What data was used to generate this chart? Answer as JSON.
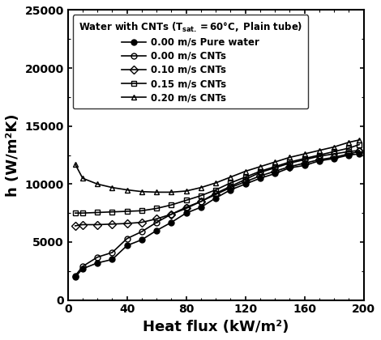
{
  "xlabel": "Heat flux (kW/m²)",
  "ylabel": "h (W/m²K)",
  "xlim": [
    0,
    200
  ],
  "ylim": [
    0,
    25000
  ],
  "xticks": [
    0,
    40,
    80,
    120,
    160,
    200
  ],
  "yticks": [
    0,
    5000,
    10000,
    15000,
    20000,
    25000
  ],
  "series": [
    {
      "label": "0.00 m/s Pure water",
      "marker": "o",
      "fillstyle": "full",
      "color": "black",
      "x": [
        5,
        10,
        20,
        30,
        40,
        50,
        60,
        70,
        80,
        90,
        100,
        110,
        120,
        130,
        140,
        150,
        160,
        170,
        180,
        190,
        197
      ],
      "y": [
        2000,
        2700,
        3200,
        3500,
        4700,
        5200,
        6000,
        6700,
        7500,
        8000,
        8800,
        9500,
        10000,
        10500,
        10900,
        11400,
        11600,
        12000,
        12200,
        12500,
        12600
      ]
    },
    {
      "label": "0.00 m/s CNTs",
      "marker": "o",
      "fillstyle": "none",
      "color": "black",
      "x": [
        5,
        10,
        20,
        30,
        40,
        50,
        60,
        70,
        80,
        90,
        100,
        110,
        120,
        130,
        140,
        150,
        160,
        170,
        180,
        190,
        197
      ],
      "y": [
        2100,
        2900,
        3700,
        4100,
        5300,
        5900,
        6700,
        7400,
        8000,
        8500,
        9200,
        9800,
        10400,
        11000,
        11400,
        11800,
        12100,
        12400,
        12600,
        12800,
        12900
      ]
    },
    {
      "label": "0.10 m/s CNTs",
      "marker": "D",
      "fillstyle": "none",
      "color": "black",
      "x": [
        5,
        10,
        20,
        30,
        40,
        50,
        60,
        70,
        80,
        90,
        100,
        110,
        120,
        130,
        140,
        150,
        160,
        170,
        180,
        190,
        197
      ],
      "y": [
        6400,
        6500,
        6500,
        6550,
        6600,
        6700,
        7000,
        7400,
        7900,
        8500,
        9100,
        9700,
        10200,
        10700,
        11100,
        11500,
        11800,
        12100,
        12300,
        12600,
        12800
      ]
    },
    {
      "label": "0.15 m/s CNTs",
      "marker": "s",
      "fillstyle": "none",
      "color": "black",
      "x": [
        5,
        10,
        20,
        30,
        40,
        50,
        60,
        70,
        80,
        90,
        100,
        110,
        120,
        130,
        140,
        150,
        160,
        170,
        180,
        190,
        197
      ],
      "y": [
        7500,
        7500,
        7550,
        7600,
        7650,
        7700,
        7900,
        8200,
        8600,
        9000,
        9500,
        10100,
        10600,
        11100,
        11500,
        11900,
        12200,
        12500,
        12800,
        13100,
        13400
      ]
    },
    {
      "label": "0.20 m/s CNTs",
      "marker": "^",
      "fillstyle": "none",
      "color": "black",
      "x": [
        5,
        10,
        20,
        30,
        40,
        50,
        60,
        70,
        80,
        90,
        100,
        110,
        120,
        130,
        140,
        150,
        160,
        170,
        180,
        190,
        197
      ],
      "y": [
        11700,
        10500,
        10000,
        9700,
        9500,
        9350,
        9300,
        9300,
        9400,
        9700,
        10100,
        10600,
        11100,
        11500,
        11900,
        12300,
        12600,
        12900,
        13200,
        13600,
        13800
      ]
    }
  ],
  "background_color": "#ffffff",
  "legend_title": "Water with CNTs (T",
  "legend_title_sub": "sat.",
  "legend_title_rest": "=60°C, Plain tube)",
  "legend_fontsize": 8.5,
  "axis_label_fontsize": 13,
  "tick_fontsize": 10,
  "markersize": 5,
  "linewidth": 1.2
}
